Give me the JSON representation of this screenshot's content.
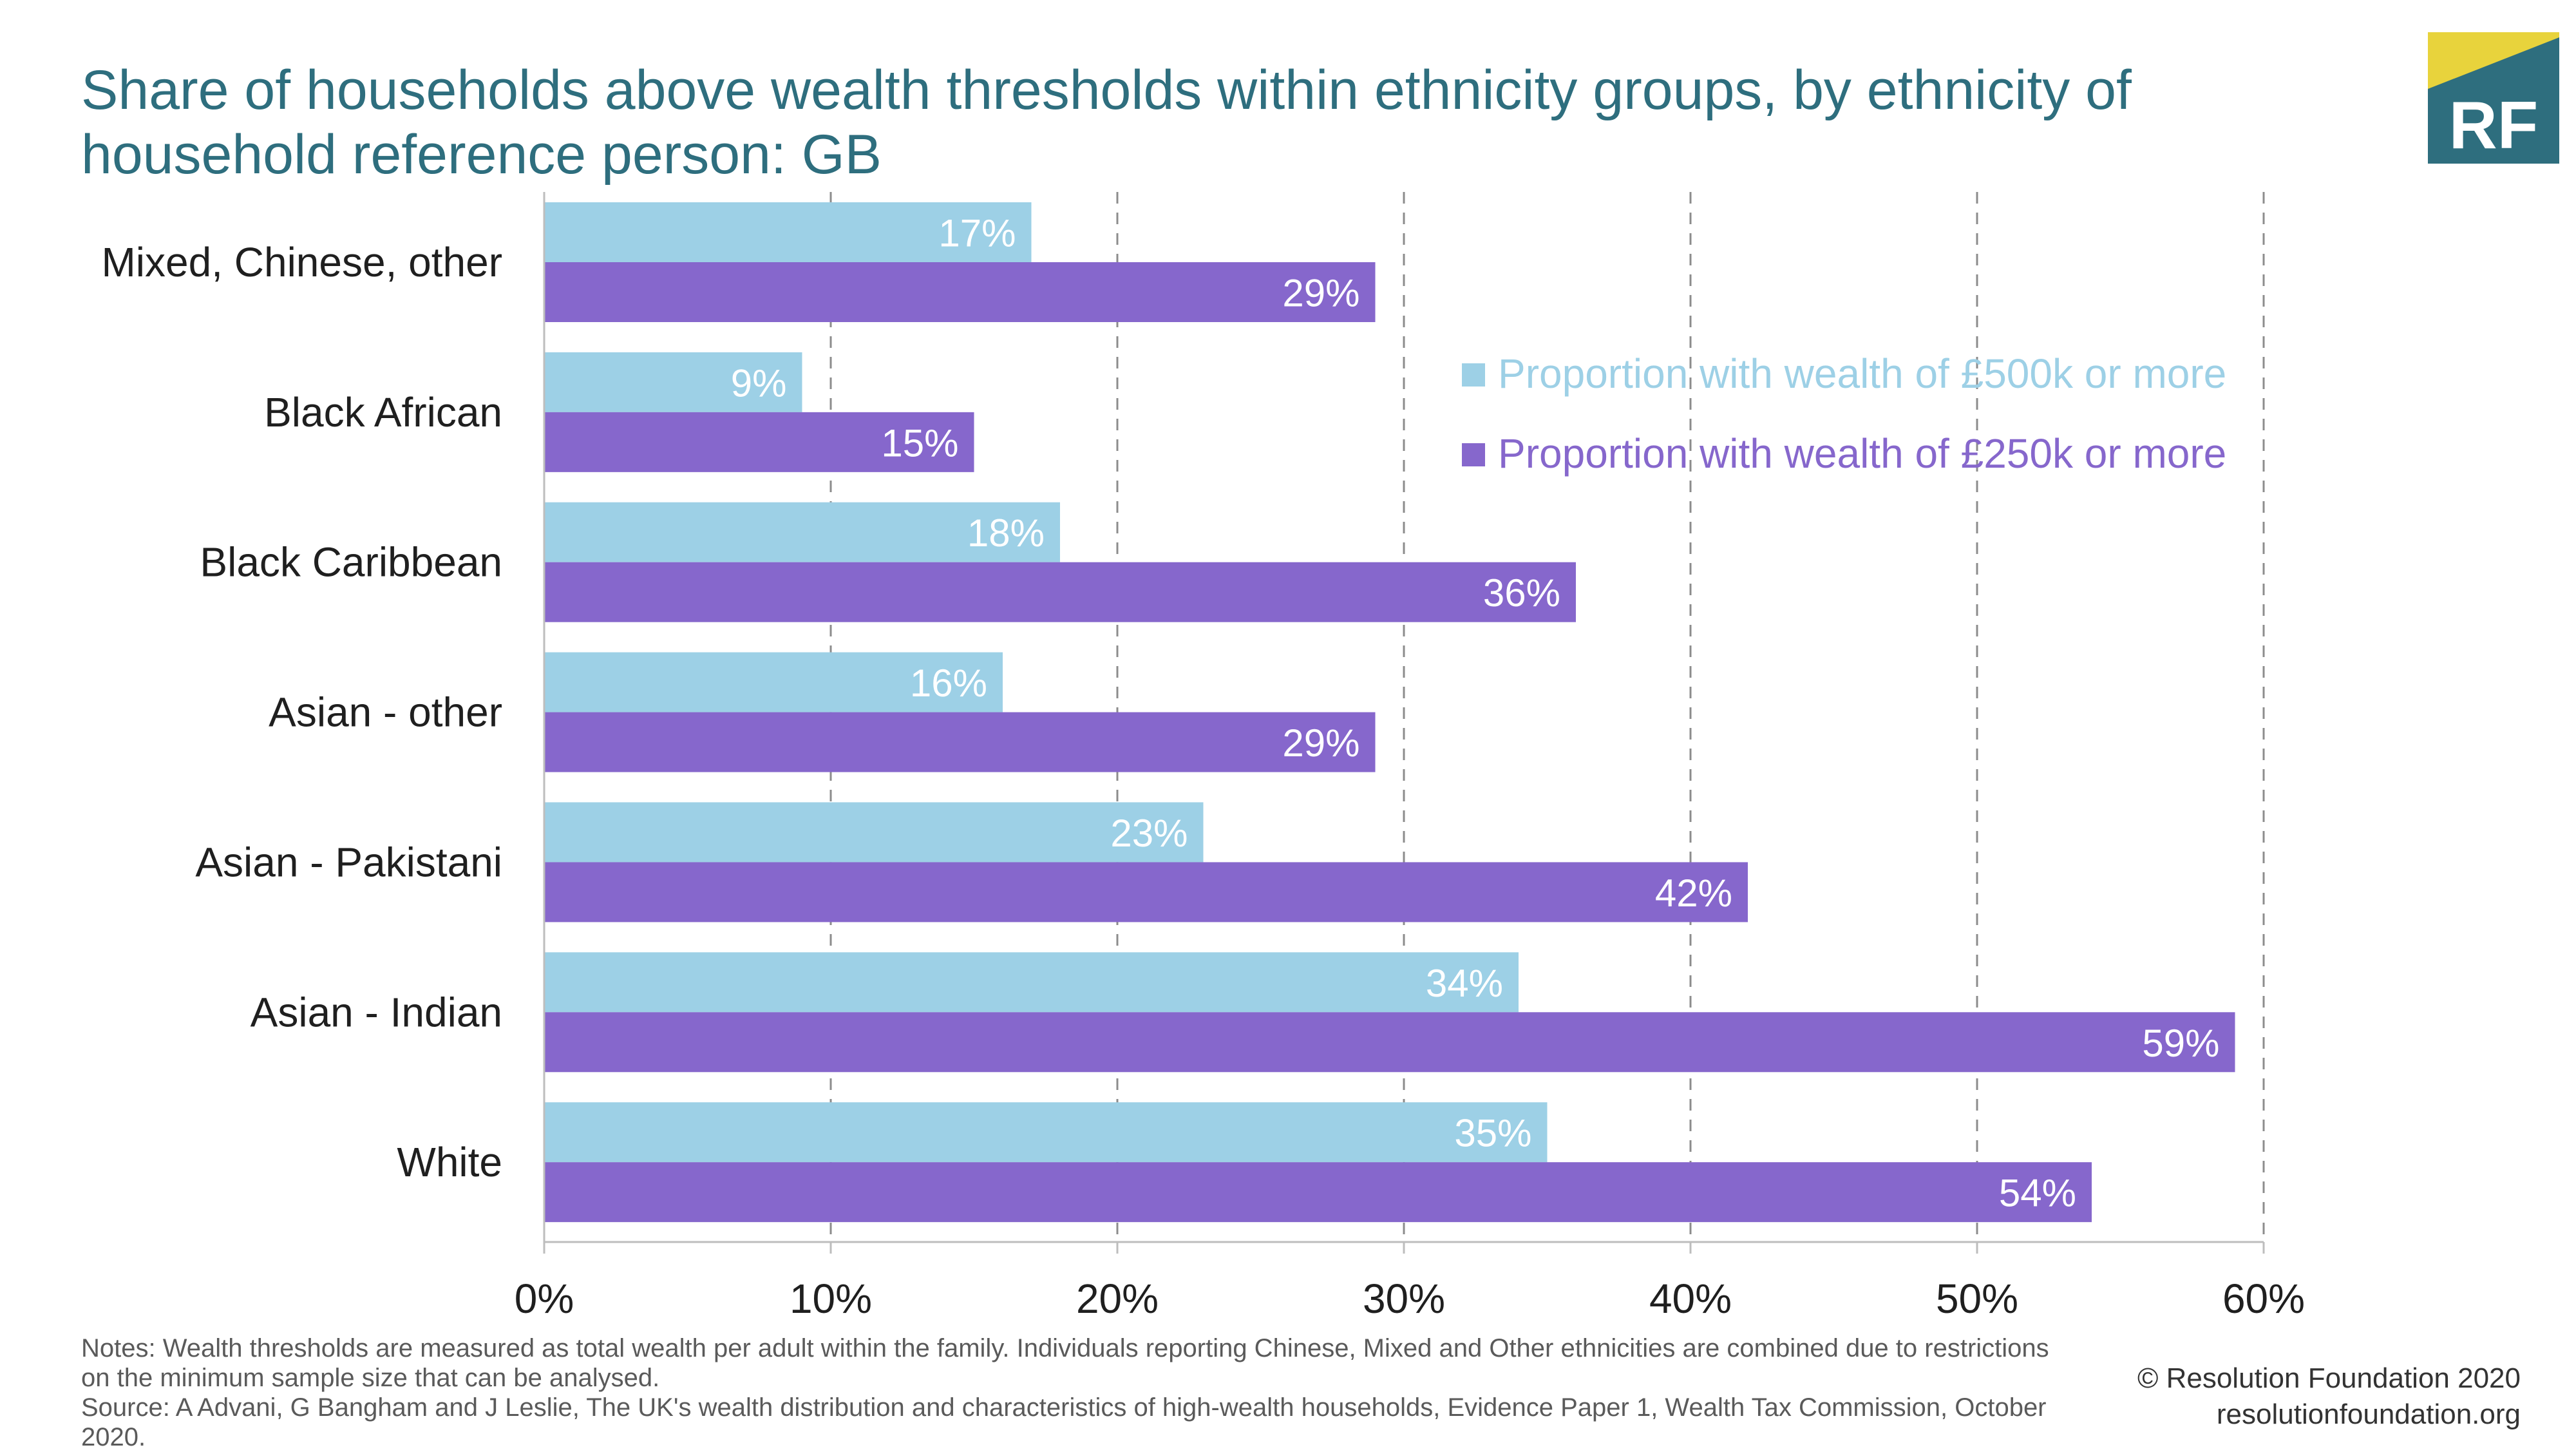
{
  "title": "Share of households above wealth thresholds within ethnicity groups, by ethnicity of household reference person: GB",
  "logo": {
    "text": "RF",
    "colors": {
      "yellow": "#e8d33c",
      "teal": "#2e6e7e"
    }
  },
  "chart_data": {
    "type": "bar",
    "orientation": "horizontal",
    "categories": [
      "Mixed, Chinese, other",
      "Black African",
      "Black Caribbean",
      "Asian - other",
      "Asian - Pakistani",
      "Asian - Indian",
      "White"
    ],
    "series": [
      {
        "name": "Proportion with wealth of £500k or more",
        "color": "#9dd0e6",
        "values": [
          17,
          9,
          18,
          16,
          23,
          34,
          35
        ],
        "labels": [
          "17%",
          "9%",
          "18%",
          "16%",
          "23%",
          "34%",
          "35%"
        ]
      },
      {
        "name": "Proportion with wealth of £250k or more",
        "color": "#8667cc",
        "values": [
          29,
          15,
          36,
          29,
          42,
          59,
          54
        ],
        "labels": [
          "29%",
          "15%",
          "36%",
          "29%",
          "42%",
          "59%",
          "54%"
        ]
      }
    ],
    "xlim": [
      0,
      60
    ],
    "xticks": [
      0,
      10,
      20,
      30,
      40,
      50,
      60
    ],
    "xtick_labels": [
      "0%",
      "10%",
      "20%",
      "30%",
      "40%",
      "50%",
      "60%"
    ],
    "grid": "vertical-dashed",
    "legend_position": "top-right"
  },
  "notes": [
    "Notes: Wealth thresholds are measured as total wealth per adult within the family. Individuals reporting Chinese, Mixed and Other ethnicities are combined due to restrictions on the minimum sample size that can be analysed.",
    "Source: A Advani, G Bangham and J Leslie, The UK's wealth distribution and characteristics of high-wealth households, Evidence Paper 1, Wealth Tax Commission, October 2020."
  ],
  "credit": [
    "© Resolution Foundation 2020",
    "resolutionfoundation.org"
  ]
}
